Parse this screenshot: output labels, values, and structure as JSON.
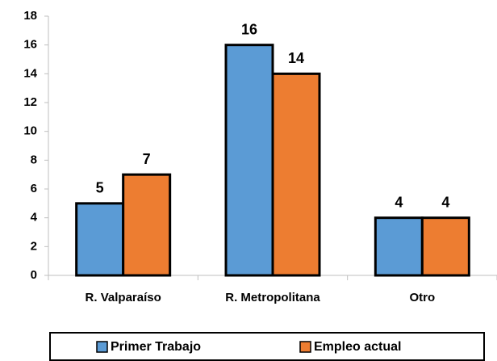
{
  "chart_data": {
    "type": "bar",
    "categories": [
      "R. Valparaíso",
      "R. Metropolitana",
      "Otro"
    ],
    "series": [
      {
        "name": "Primer Trabajo",
        "color": "#5b9bd5",
        "values": [
          5,
          16,
          4
        ]
      },
      {
        "name": "Empleo actual",
        "color": "#ed7d31",
        "values": [
          7,
          14,
          4
        ]
      }
    ],
    "ylim": [
      0,
      18
    ],
    "yticks": [
      0,
      2,
      4,
      6,
      8,
      10,
      12,
      14,
      16,
      18
    ],
    "grid": false,
    "legend": "bottom"
  }
}
